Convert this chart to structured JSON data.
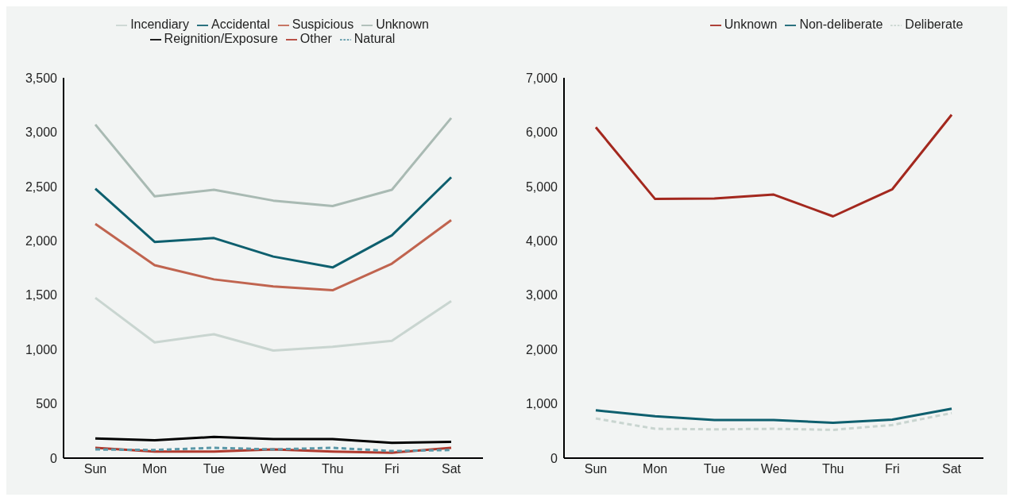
{
  "chart_data": [
    {
      "type": "line",
      "categories": [
        "Sun",
        "Mon",
        "Tue",
        "Wed",
        "Thu",
        "Fri",
        "Sat"
      ],
      "ylim": [
        0,
        3500
      ],
      "yticks": [
        0,
        {
          "value": 500,
          "label": "500"
        },
        {
          "value": 1000,
          "label": "1,000"
        },
        {
          "value": 1500,
          "label": "1,500"
        },
        {
          "value": 2000,
          "label": "2,000"
        },
        {
          "value": 2500,
          "label": "2,500"
        },
        {
          "value": 3000,
          "label": "3,000"
        },
        {
          "value": 3500,
          "label": "3,500"
        }
      ],
      "grid": false,
      "legend": "top",
      "marker": "none",
      "line_style": "solid",
      "series": [
        {
          "name": "Incendiary",
          "color": "#c9d5d0",
          "values": [
            1475,
            1065,
            1140,
            990,
            1025,
            1080,
            1445
          ]
        },
        {
          "name": "Accidental",
          "color": "#0e5f6e",
          "values": [
            2480,
            1990,
            2025,
            1855,
            1755,
            2050,
            2585
          ]
        },
        {
          "name": "Suspicious",
          "color": "#c0644f",
          "values": [
            2155,
            1775,
            1645,
            1580,
            1545,
            1790,
            2190
          ]
        },
        {
          "name": "Unknown",
          "color": "#a9bab3",
          "values": [
            3070,
            2410,
            2470,
            2370,
            2320,
            2470,
            3130
          ]
        },
        {
          "name": "Reignition/Exposure",
          "color": "#000000",
          "values": [
            180,
            165,
            195,
            175,
            175,
            140,
            150
          ]
        },
        {
          "name": "Other",
          "color": "#b03a2e",
          "values": [
            95,
            60,
            60,
            80,
            60,
            50,
            95
          ]
        },
        {
          "name": "Natural",
          "color": "#5b98a8",
          "line_style": "dashed",
          "values": [
            80,
            75,
            95,
            80,
            95,
            65,
            75
          ]
        }
      ]
    },
    {
      "type": "line",
      "categories": [
        "Sun",
        "Mon",
        "Tue",
        "Wed",
        "Thu",
        "Fri",
        "Sat"
      ],
      "ylim": [
        0,
        7000
      ],
      "yticks": [
        0,
        {
          "value": 1000,
          "label": "1,000"
        },
        {
          "value": 2000,
          "label": "2,000"
        },
        {
          "value": 3000,
          "label": "3,000"
        },
        {
          "value": 4000,
          "label": "4,000"
        },
        {
          "value": 5000,
          "label": "5,000"
        },
        {
          "value": 6000,
          "label": "6,000"
        },
        {
          "value": 7000,
          "label": "7,000"
        }
      ],
      "grid": false,
      "legend": "top",
      "marker": "none",
      "line_style": "solid",
      "series": [
        {
          "name": "Unknown",
          "color": "#a3281e",
          "values": [
            6090,
            4770,
            4780,
            4850,
            4450,
            4950,
            6320
          ]
        },
        {
          "name": "Non-deliberate",
          "color": "#0e5f6e",
          "values": [
            880,
            770,
            700,
            700,
            650,
            710,
            910
          ]
        },
        {
          "name": "Deliberate",
          "color": "#c9d5d0",
          "line_style": "dashed",
          "values": [
            730,
            540,
            530,
            540,
            520,
            610,
            830
          ]
        }
      ]
    }
  ]
}
